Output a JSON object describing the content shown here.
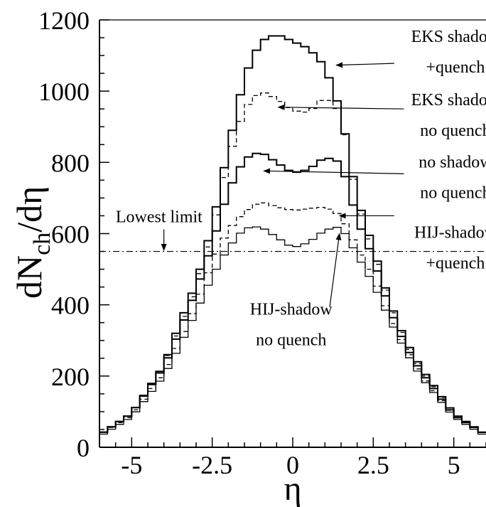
{
  "chart_data": {
    "type": "line",
    "title": "",
    "xlabel": "η",
    "ylabel_main": "dN",
    "ylabel_sub": "ch",
    "ylabel_tail": "/dη",
    "xlim": [
      -6,
      6
    ],
    "ylim": [
      0,
      1200
    ],
    "xticks": [
      -5,
      -2.5,
      0,
      2.5,
      5
    ],
    "xtick_labels": [
      "-5",
      "-2.5",
      "0",
      "2.5",
      "5"
    ],
    "yticks": [
      0,
      200,
      400,
      600,
      800,
      1000,
      1200
    ],
    "ytick_labels": [
      "0",
      "200",
      "400",
      "600",
      "800",
      "1000",
      "1200"
    ],
    "grid": false,
    "bin_width": 0.25,
    "reference_line": {
      "y": 550,
      "style": "dash-dot"
    },
    "series": [
      {
        "key": "eks_quench",
        "style": "solid",
        "width": 2,
        "points": [
          [
            -6,
            35
          ],
          [
            -5,
            95
          ],
          [
            -4,
            230
          ],
          [
            -3.5,
            350
          ],
          [
            -3,
            460
          ],
          [
            -2.5,
            620
          ],
          [
            -2,
            840
          ],
          [
            -1.5,
            1040
          ],
          [
            -1,
            1140
          ],
          [
            -0.5,
            1160
          ],
          [
            0,
            1140
          ],
          [
            0.5,
            1120
          ],
          [
            1,
            1070
          ],
          [
            1.5,
            940
          ],
          [
            2,
            700
          ],
          [
            2.5,
            560
          ],
          [
            3,
            410
          ],
          [
            3.5,
            300
          ],
          [
            4,
            220
          ],
          [
            5,
            95
          ],
          [
            6,
            35
          ]
        ]
      },
      {
        "key": "eks_noquench",
        "style": "dash",
        "width": 1.3,
        "points": [
          [
            -6,
            35
          ],
          [
            -5,
            95
          ],
          [
            -4,
            230
          ],
          [
            -3.5,
            340
          ],
          [
            -3,
            450
          ],
          [
            -2.5,
            600
          ],
          [
            -2,
            810
          ],
          [
            -1.5,
            950
          ],
          [
            -1,
            1000
          ],
          [
            -0.5,
            980
          ],
          [
            0,
            945
          ],
          [
            0.5,
            940
          ],
          [
            1,
            985
          ],
          [
            1.5,
            940
          ],
          [
            2,
            690
          ],
          [
            2.5,
            550
          ],
          [
            3,
            405
          ],
          [
            3.5,
            295
          ],
          [
            4,
            215
          ],
          [
            5,
            95
          ],
          [
            6,
            35
          ]
        ]
      },
      {
        "key": "noshadow_noquench",
        "style": "solid",
        "width": 2,
        "points": [
          [
            -6,
            35
          ],
          [
            -5,
            95
          ],
          [
            -4,
            225
          ],
          [
            -3.5,
            330
          ],
          [
            -3,
            440
          ],
          [
            -2.5,
            570
          ],
          [
            -2,
            720
          ],
          [
            -1.5,
            810
          ],
          [
            -1,
            830
          ],
          [
            -0.5,
            800
          ],
          [
            0,
            770
          ],
          [
            0.5,
            780
          ],
          [
            1,
            815
          ],
          [
            1.5,
            800
          ],
          [
            2,
            640
          ],
          [
            2.5,
            530
          ],
          [
            3,
            390
          ],
          [
            3.5,
            285
          ],
          [
            4,
            210
          ],
          [
            5,
            90
          ],
          [
            6,
            35
          ]
        ]
      },
      {
        "key": "hij_quench",
        "style": "dash",
        "width": 1.3,
        "points": [
          [
            -6,
            35
          ],
          [
            -5,
            90
          ],
          [
            -4,
            210
          ],
          [
            -3.5,
            300
          ],
          [
            -3,
            400
          ],
          [
            -2.5,
            520
          ],
          [
            -2,
            610
          ],
          [
            -1.5,
            660
          ],
          [
            -1,
            690
          ],
          [
            -0.5,
            675
          ],
          [
            0,
            665
          ],
          [
            0.5,
            670
          ],
          [
            1,
            675
          ],
          [
            1.5,
            650
          ],
          [
            2,
            560
          ],
          [
            2.5,
            480
          ],
          [
            3,
            370
          ],
          [
            3.5,
            280
          ],
          [
            4,
            200
          ],
          [
            5,
            90
          ],
          [
            6,
            35
          ]
        ]
      },
      {
        "key": "hij_noquench",
        "style": "solid",
        "width": 1.3,
        "points": [
          [
            -6,
            30
          ],
          [
            -5,
            85
          ],
          [
            -4,
            200
          ],
          [
            -3.5,
            285
          ],
          [
            -3,
            380
          ],
          [
            -2.5,
            480
          ],
          [
            -2,
            560
          ],
          [
            -1.5,
            615
          ],
          [
            -1,
            620
          ],
          [
            -0.5,
            590
          ],
          [
            0,
            560
          ],
          [
            0.5,
            575
          ],
          [
            1,
            610
          ],
          [
            1.5,
            620
          ],
          [
            2,
            540
          ],
          [
            2.5,
            460
          ],
          [
            3,
            360
          ],
          [
            3.5,
            270
          ],
          [
            4,
            195
          ],
          [
            5,
            85
          ],
          [
            6,
            30
          ]
        ]
      }
    ],
    "annotations": [
      {
        "key": "eks_quench",
        "lines": [
          "EKS shadow",
          "+quench"
        ],
        "text_x": 5.05,
        "text_y": 1138,
        "line_dy": 43,
        "arrow_from": [
          3.15,
          1078
        ],
        "arrow_to": [
          1.35,
          1073
        ]
      },
      {
        "key": "eks_noquench",
        "lines": [
          "EKS shadow",
          "no quench"
        ],
        "text_x": 5.05,
        "text_y": 960,
        "line_dy": 43,
        "arrow_from": [
          3.45,
          950
        ],
        "arrow_to": [
          -0.45,
          955
        ]
      },
      {
        "key": "noshadow_noquench",
        "lines": [
          "no shadow",
          "no quench"
        ],
        "text_x": 5.05,
        "text_y": 786,
        "line_dy": 43,
        "arrow_from": [
          3.45,
          768
        ],
        "arrow_to": [
          -0.9,
          776
        ]
      },
      {
        "key": "hij_quench",
        "lines": [
          "HIJ-shadow",
          "+quench"
        ],
        "text_x": 5.05,
        "text_y": 588,
        "line_dy": 43,
        "arrow_from": [
          3.15,
          650
        ],
        "arrow_to": [
          1.45,
          650
        ]
      },
      {
        "key": "hij_noquench",
        "lines": [
          "HIJ-shadow",
          "no quench"
        ],
        "text_x": -0.05,
        "text_y": 372,
        "line_dy": 43,
        "arrow_from": [
          1.15,
          395
        ],
        "arrow_to": [
          1.45,
          600
        ]
      },
      {
        "key": "lowest",
        "lines": [
          "Lowest limit"
        ],
        "text_x": -4.15,
        "text_y": 632,
        "line_dy": 0,
        "arrow_from": [
          -4.0,
          612
        ],
        "arrow_to": [
          -4.0,
          553
        ]
      }
    ]
  }
}
